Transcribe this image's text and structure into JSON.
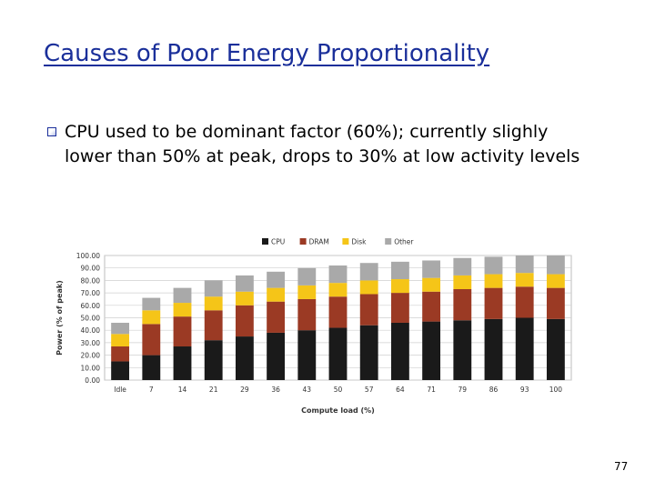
{
  "slide": {
    "title": "Causes of Poor Energy Proportionality",
    "bullet": "CPU used to be dominant factor (60%); currently slighly lower than 50% at peak, drops to 30% at low activity levels",
    "page_number": "77"
  },
  "chart_data": {
    "type": "bar",
    "stacked": true,
    "title": "",
    "xlabel": "Compute load (%)",
    "ylabel": "Power (% of peak)",
    "ylim": [
      0,
      100
    ],
    "yticks": [
      "0.00",
      "10.00",
      "20.00",
      "30.00",
      "40.00",
      "50.00",
      "60.00",
      "70.00",
      "80.00",
      "90.00",
      "100.00"
    ],
    "grid": true,
    "legend": "top",
    "categories": [
      "Idle",
      "7",
      "14",
      "21",
      "29",
      "36",
      "43",
      "50",
      "57",
      "64",
      "71",
      "79",
      "86",
      "93",
      "100"
    ],
    "series": [
      {
        "name": "CPU",
        "color": "#1a1a1a",
        "values": [
          15,
          20,
          27,
          32,
          35,
          38,
          40,
          42,
          44,
          46,
          47,
          48,
          49,
          50,
          49
        ]
      },
      {
        "name": "DRAM",
        "color": "#9b3a24",
        "values": [
          12,
          25,
          24,
          24,
          25,
          25,
          25,
          25,
          25,
          24,
          24,
          25,
          25,
          25,
          25
        ]
      },
      {
        "name": "Disk",
        "color": "#f5c518",
        "values": [
          10,
          11,
          11,
          11,
          11,
          11,
          11,
          11,
          11,
          11,
          11,
          11,
          11,
          11,
          11
        ]
      },
      {
        "name": "Other",
        "color": "#a9a9a9",
        "values": [
          9,
          10,
          12,
          13,
          13,
          13,
          14,
          14,
          14,
          14,
          14,
          14,
          14,
          14,
          15
        ]
      }
    ]
  }
}
